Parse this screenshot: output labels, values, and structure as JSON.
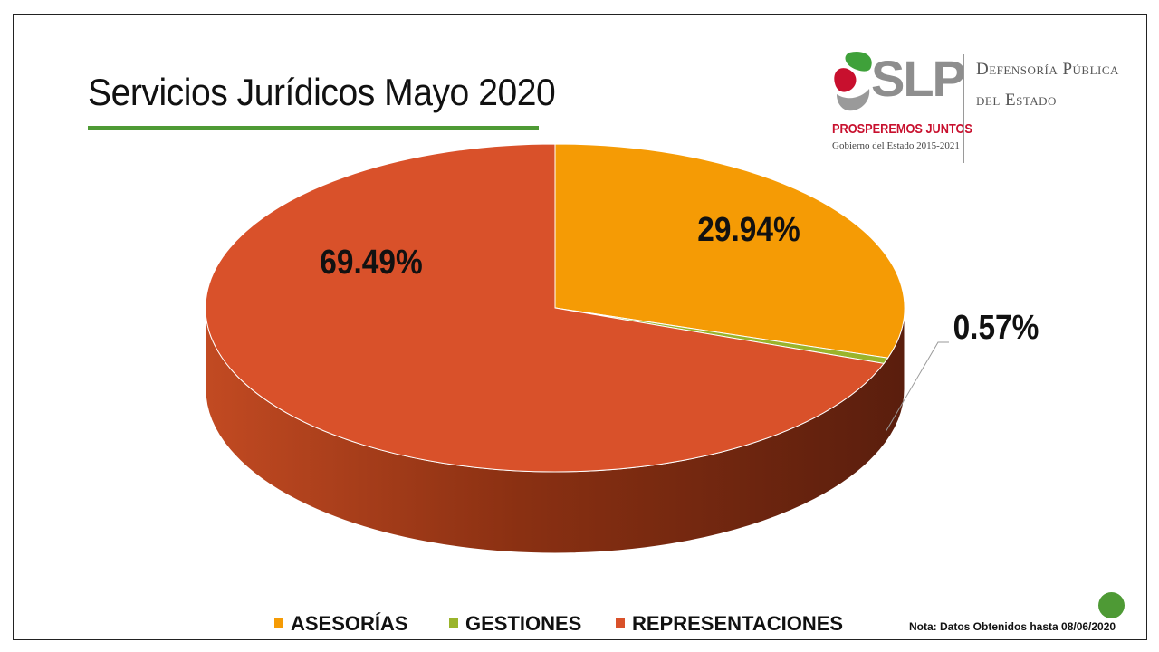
{
  "slide": {
    "title": "Servicios Jurídicos Mayo 2020",
    "note": "Nota: Datos Obtenidos hasta 08/06/2020",
    "accent_color": "#4e9a35"
  },
  "logo": {
    "brand": "SLP",
    "slogan": "PROSPEREMOS JUNTOS",
    "government": "Gobierno del Estado 2015-2021",
    "org_line1": "Defensoría Pública",
    "org_line2": "del Estado"
  },
  "chart_data": {
    "type": "pie",
    "style": "3d",
    "title": "Servicios Jurídicos Mayo 2020",
    "legend_position": "bottom",
    "categories": [
      "ASESORÍAS",
      "GESTIONES",
      "REPRESENTACIONES"
    ],
    "values": [
      29.94,
      0.57,
      69.49
    ],
    "labels": [
      "29.94%",
      "0.57%",
      "69.49%"
    ],
    "colors": [
      "#f59b05",
      "#9ab42b",
      "#d9512a"
    ],
    "side_colors": [
      "#b86e00",
      "#6d8219",
      "#8a3012"
    ]
  }
}
